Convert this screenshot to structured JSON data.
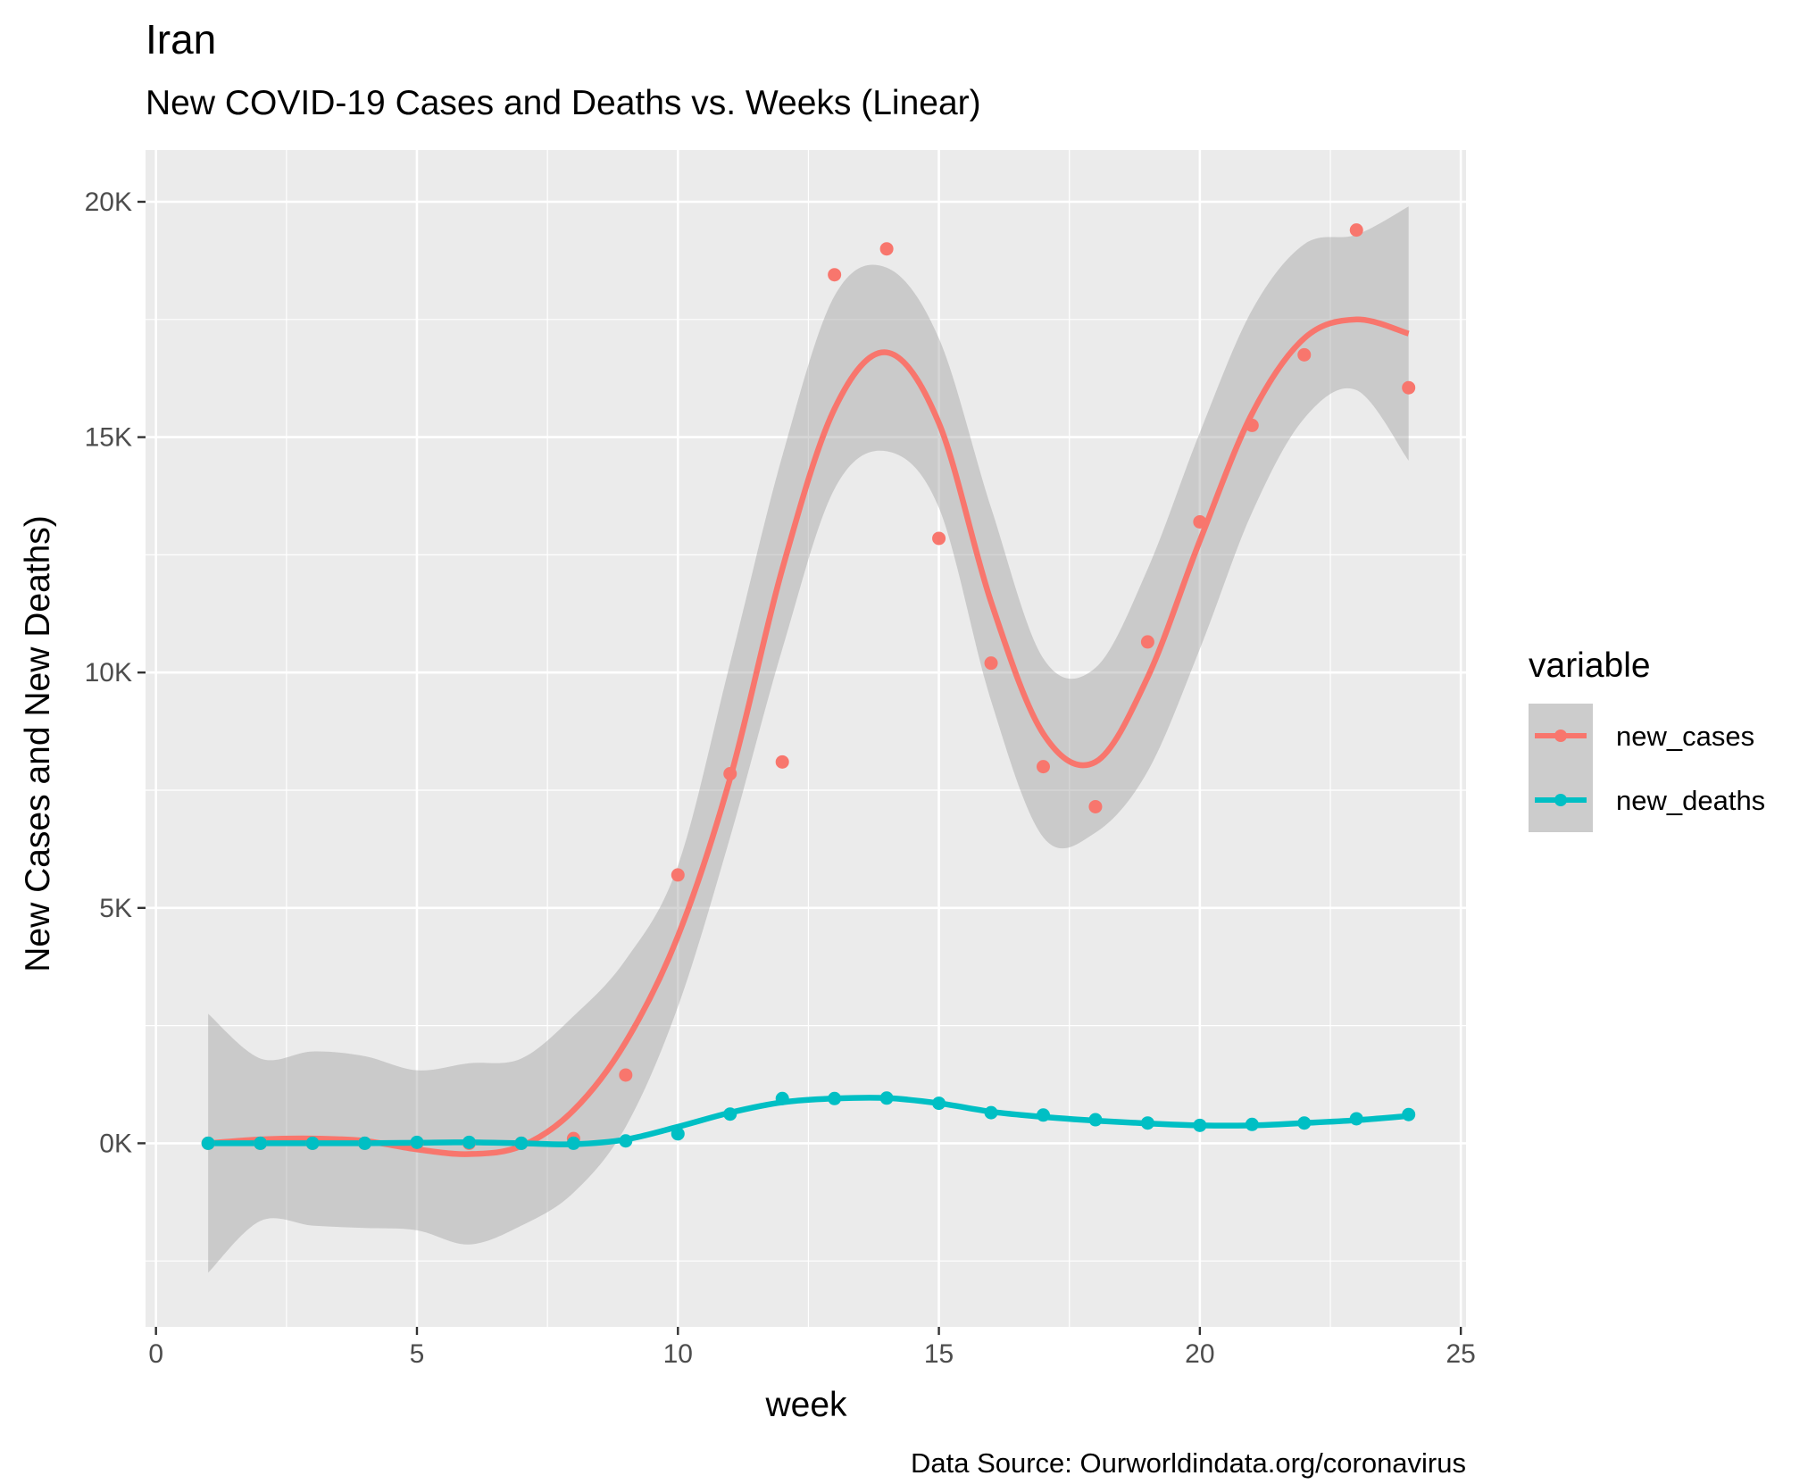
{
  "chart_data": {
    "type": "line",
    "title": "Iran",
    "subtitle": "New COVID-19 Cases and Deaths vs. Weeks (Linear)",
    "xlabel": "week",
    "ylabel": "New Cases and New Deaths)",
    "caption": "Data Source: Ourworldindata.org/coronavirus",
    "xlim": [
      -0.2,
      25.1
    ],
    "ylim": [
      -3900,
      21100
    ],
    "x_ticks": [
      0,
      5,
      10,
      15,
      20,
      25
    ],
    "x_tick_labels": [
      "0",
      "5",
      "10",
      "15",
      "20",
      "25"
    ],
    "y_ticks": [
      0,
      5000,
      10000,
      15000,
      20000
    ],
    "y_tick_labels": [
      "0K",
      "5K",
      "10K",
      "15K",
      "20K"
    ],
    "grid": true,
    "legend": {
      "title": "variable",
      "position": "right"
    },
    "x": [
      1,
      2,
      3,
      4,
      5,
      6,
      7,
      8,
      9,
      10,
      11,
      12,
      13,
      14,
      15,
      16,
      17,
      18,
      19,
      20,
      21,
      22,
      23,
      24
    ],
    "series": [
      {
        "name": "new_cases",
        "color": "#F8766D",
        "points": [
          0,
          0,
          0,
          0,
          0,
          0,
          0,
          100,
          1450,
          5700,
          7850,
          8100,
          18450,
          19000,
          12850,
          10200,
          8000,
          7150,
          10650,
          13200,
          15250,
          16750,
          19400,
          16050
        ],
        "smooth": [
          0,
          80,
          100,
          50,
          -130,
          -230,
          -60,
          700,
          2150,
          4400,
          7750,
          12200,
          15600,
          16800,
          15300,
          11500,
          8700,
          8100,
          9900,
          12800,
          15500,
          17100,
          17500,
          17200
        ],
        "ci_upper": [
          2750,
          1800,
          1950,
          1850,
          1550,
          1700,
          1800,
          2700,
          3900,
          5900,
          10200,
          14600,
          18000,
          18600,
          17100,
          13500,
          10300,
          10100,
          12200,
          15100,
          17700,
          19100,
          19300,
          19900
        ],
        "ci_lower": [
          -2750,
          -1650,
          -1750,
          -1800,
          -1850,
          -2150,
          -1750,
          -1050,
          350,
          2900,
          6500,
          10500,
          13900,
          14700,
          13500,
          9400,
          6500,
          6600,
          7900,
          10500,
          13400,
          15400,
          16000,
          14500
        ]
      },
      {
        "name": "new_deaths",
        "color": "#00BFC4",
        "points": [
          0,
          0,
          0,
          0,
          20,
          20,
          0,
          0,
          50,
          200,
          620,
          950,
          950,
          960,
          850,
          650,
          600,
          500,
          430,
          380,
          400,
          430,
          520,
          610
        ],
        "smooth": [
          0,
          0,
          0,
          0,
          10,
          20,
          0,
          -20,
          80,
          350,
          650,
          870,
          950,
          960,
          850,
          670,
          560,
          480,
          420,
          380,
          380,
          430,
          490,
          580
        ]
      }
    ]
  }
}
